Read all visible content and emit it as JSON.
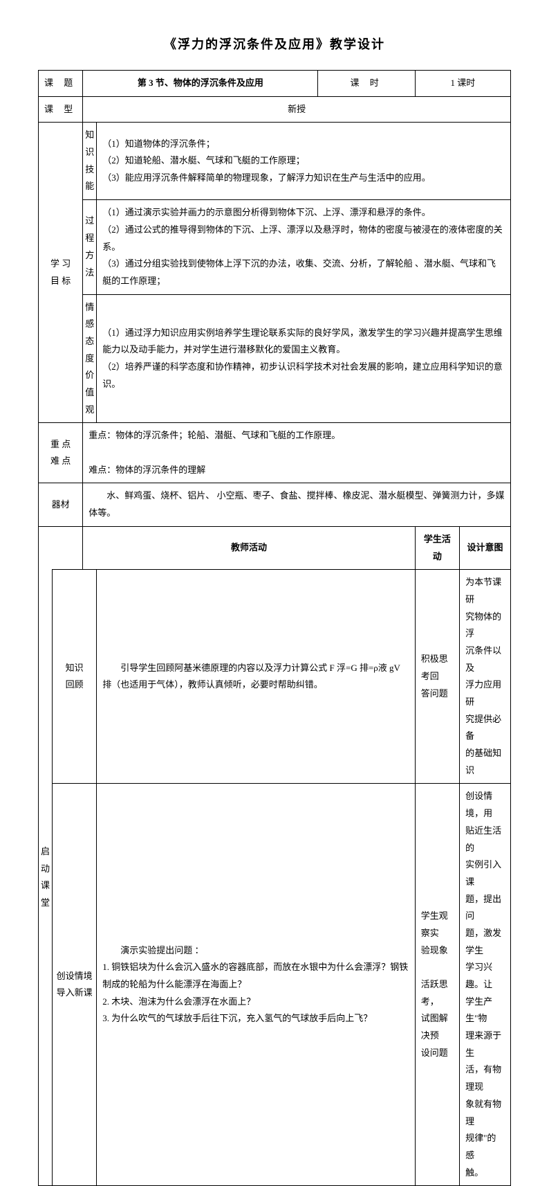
{
  "title": "《浮力的浮沉条件及应用》教学设计",
  "row1": {
    "topic_label": "课 题",
    "topic_value": "第 3 节、物体的浮沉条件及应用",
    "period_label": "课 时",
    "period_value": "1 课时"
  },
  "row2": {
    "type_label": "课 型",
    "type_value": "新授"
  },
  "objectives": {
    "label": "学 习\n目 标",
    "knowledge": {
      "label": "知识\n技能",
      "content": "（1）知道物体的浮沉条件；\n（2）知道轮船、潜水艇、气球和飞艇的工作原理；\n（3）能应用浮沉条件解释简单的物理现象，了解浮力知识在生产与生活中的应用。"
    },
    "process": {
      "label": "过程\n方法",
      "content": "（1）通过演示实验并画力的示意图分析得到物体下沉、上浮、漂浮和悬浮的条件。\n（2）通过公式的推导得到物体的下沉、上浮、漂浮以及悬浮时，物体的密度与被浸在的液体密度的关系。\n（3）通过分组实验找到使物体上浮下沉的办法，收集、交流、分析，了解轮船 、潜水艇、气球和飞艇的工作原理；"
    },
    "attitude": {
      "label": "情感\n态度\n价值\n观",
      "content": "（1）通过浮力知识应用实例培养学生理论联系实际的良好学风，激发学生的学习兴趣并提高学生思维能力以及动手能力，并对学生进行潜移默化的爱国主义教育。\n（2）培养严谨的科学态度和协作精神，初步认识科学技术对社会发展的影响，建立应用科学知识的意识。"
    }
  },
  "focus": {
    "label": "重 点\n难 点",
    "content": "重点：物体的浮沉条件；轮船、潜艇、气球和飞艇的工作原理。\n\n难点：物体的浮沉条件的理解"
  },
  "equipment": {
    "label": "器材",
    "content": "　　水、鲜鸡蛋、烧杯、铝片、 小空瓶、枣子、食盐、搅拌棒、橡皮泥、潜水艇模型、弹簧测力计，多媒体等。"
  },
  "headers": {
    "teacher": "教师活动",
    "student": "学生活动",
    "design": "设计意图"
  },
  "launch": {
    "label": "启动\n课堂",
    "review": {
      "label": "知识\n回顾",
      "teacher": "　　引导学生回顾阿基米德原理的内容以及浮力计算公式 F 浮=G 排=ρ液 gV 排（也适用于气体），教师认真倾听，必要时帮助纠错。",
      "student": "积极思考回\n答问题",
      "design": "为本节课研\n究物体的浮\n沉条件以及\n浮力应用研\n究提供必备\n的基础知识"
    },
    "intro": {
      "label": "创设情境\n导入新课",
      "teacher": "　　演示实验提出问题 ：\n1. 铜铁铝块为什么会沉入盛水的容器底部，而放在水银中为什么会漂浮？钢铁制成的轮船为什么能漂浮在海面上？\n2. 木块、泡沫为什么会漂浮在水面上？\n3. 为什么吹气的气球放手后往下沉，充入氢气的气球放手后向上飞？",
      "student": "学生观察实\n验现象\n\n活跃思考，\n试图解决预\n设问题",
      "design": "创设情境，用\n贴近生活的\n实例引入课\n题，提出问\n题，激发学生\n学习兴趣。让\n学生产生\"物\n理来源于生\n活，有物理现\n象就有物理\n规律\"的感\n触。"
    }
  }
}
